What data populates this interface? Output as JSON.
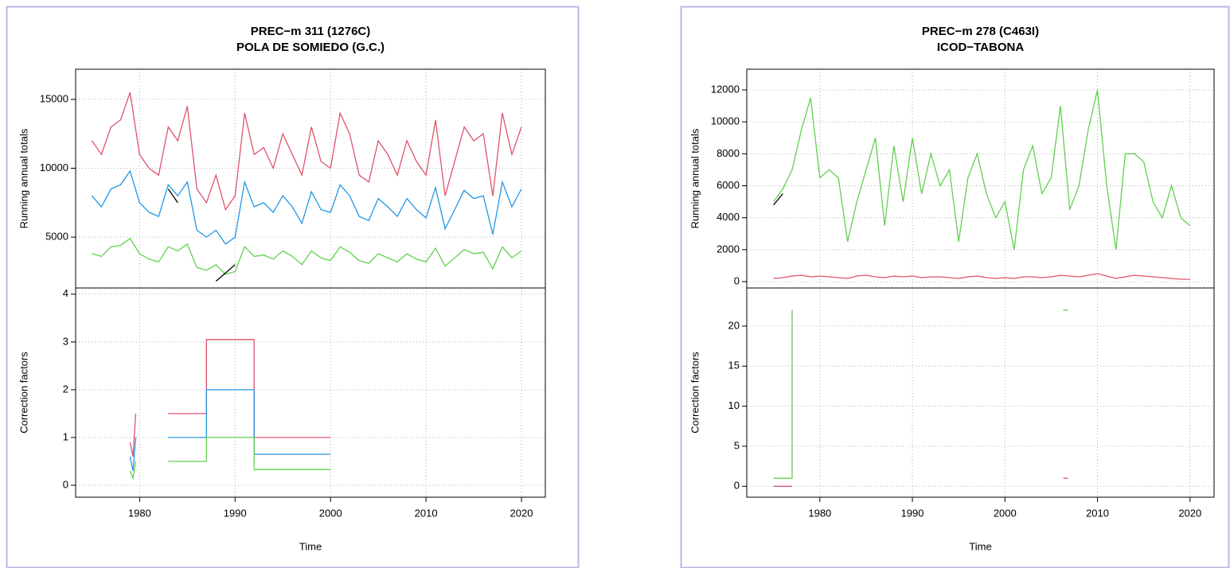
{
  "chart_data": [
    {
      "type": "line",
      "title": "PREC−m   311 (1276C)",
      "subtitle": "POLA DE SOMIEDO (G.C.)",
      "xlabel": "Time",
      "xlim": [
        1973.3,
        2022.5
      ],
      "xticks": [
        1980,
        1990,
        2000,
        2010,
        2020
      ],
      "grid": true,
      "panels": [
        {
          "ylabel": "Running annual totals",
          "ylim": [
            1310,
            17190
          ],
          "yticks": [
            5000,
            10000,
            15000
          ],
          "x": [
            1975,
            1976,
            1977,
            1978,
            1979,
            1980,
            1981,
            1982,
            1983,
            1984,
            1985,
            1986,
            1987,
            1988,
            1989,
            1990,
            1991,
            1992,
            1993,
            1994,
            1995,
            1996,
            1997,
            1998,
            1999,
            2000,
            2001,
            2002,
            2003,
            2004,
            2005,
            2006,
            2007,
            2008,
            2009,
            2010,
            2011,
            2012,
            2013,
            2014,
            2015,
            2016,
            2017,
            2018,
            2019,
            2020
          ],
          "series": [
            {
              "color": "#DF536B",
              "values": [
                12000,
                11000,
                13000,
                13500,
                15500,
                11000,
                10000,
                9500,
                13000,
                12000,
                14500,
                8500,
                7500,
                9500,
                7000,
                8000,
                14000,
                11000,
                11500,
                10000,
                12500,
                11000,
                9500,
                13000,
                10500,
                10000,
                14000,
                12500,
                9500,
                9000,
                12000,
                11000,
                9500,
                12000,
                10500,
                9500,
                13500,
                8000,
                10500,
                13000,
                12000,
                12500,
                8000,
                14000,
                11000,
                13000
              ]
            },
            {
              "color": "#2297E6",
              "values": [
                8000,
                7200,
                8500,
                8800,
                9800,
                7500,
                6800,
                6500,
                8800,
                8000,
                9000,
                5500,
                5000,
                5500,
                4500,
                5000,
                9000,
                7200,
                7500,
                6800,
                8000,
                7200,
                6000,
                8300,
                7000,
                6800,
                8800,
                8000,
                6500,
                6200,
                7800,
                7200,
                6500,
                7800,
                7000,
                6400,
                8600,
                5600,
                7000,
                8400,
                7800,
                8000,
                5200,
                9000,
                7200,
                8500
              ]
            },
            {
              "color": "#61D04F",
              "values": [
                3800,
                3600,
                4300,
                4400,
                4900,
                3800,
                3400,
                3200,
                4300,
                4000,
                4500,
                2800,
                2600,
                3000,
                2300,
                2500,
                4300,
                3600,
                3700,
                3400,
                4000,
                3600,
                3000,
                4000,
                3500,
                3300,
                4300,
                3900,
                3300,
                3100,
                3800,
                3500,
                3200,
                3800,
                3400,
                3200,
                4200,
                2900,
                3500,
                4100,
                3800,
                3900,
                2700,
                4300,
                3500,
                4000
              ]
            },
            {
              "color": "#000000",
              "values": [
                null,
                null,
                null,
                null,
                null,
                null,
                null,
                null,
                8500,
                7500,
                null,
                null,
                null,
                1800,
                2400,
                3000,
                null,
                null,
                null,
                null,
                null,
                null,
                null,
                null,
                null,
                null,
                null,
                null,
                null,
                null,
                null,
                null,
                null,
                null,
                null,
                null,
                null,
                null,
                null,
                null,
                null,
                null,
                null,
                null,
                null,
                null
              ]
            }
          ]
        },
        {
          "ylabel": "Correction factors",
          "ylim": [
            -0.25,
            4.13
          ],
          "yticks": [
            0,
            1,
            2,
            3,
            4
          ],
          "x": [
            1979,
            1979.3,
            1979.6,
            1981,
            1983,
            1987,
            1987,
            1992,
            1992,
            2000
          ],
          "series": [
            {
              "color": "#DF536B",
              "values": [
                0.9,
                0.6,
                1.5,
                null,
                1.5,
                1.5,
                3.05,
                3.05,
                1.0,
                1.0
              ]
            },
            {
              "color": "#2297E6",
              "values": [
                0.6,
                0.3,
                1.0,
                null,
                1.0,
                1.0,
                2.0,
                2.0,
                0.65,
                0.65
              ]
            },
            {
              "color": "#61D04F",
              "values": [
                0.3,
                0.15,
                0.5,
                null,
                0.5,
                0.5,
                1.0,
                1.0,
                0.33,
                0.33
              ]
            }
          ]
        }
      ]
    },
    {
      "type": "line",
      "title": "PREC−m   278 (C463I)",
      "subtitle": "ICOD−TABONA",
      "xlabel": "Time",
      "xlim": [
        1972.1,
        2022.6
      ],
      "xticks": [
        1980,
        1990,
        2000,
        2010,
        2020
      ],
      "grid": true,
      "panels": [
        {
          "ylabel": "Running annual totals",
          "ylim": [
            -398,
            13295
          ],
          "yticks": [
            0,
            2000,
            4000,
            6000,
            8000,
            10000,
            12000
          ],
          "x": [
            1975,
            1976,
            1977,
            1978,
            1979,
            1980,
            1981,
            1982,
            1983,
            1984,
            1985,
            1986,
            1987,
            1988,
            1989,
            1990,
            1991,
            1992,
            1993,
            1994,
            1995,
            1996,
            1997,
            1998,
            1999,
            2000,
            2001,
            2002,
            2003,
            2004,
            2005,
            2006,
            2007,
            2008,
            2009,
            2010,
            2011,
            2012,
            2013,
            2014,
            2015,
            2016,
            2017,
            2018,
            2019,
            2020
          ],
          "series": [
            {
              "color": "#61D04F",
              "values": [
                5000,
                5800,
                7000,
                9500,
                11500,
                6500,
                7000,
                6500,
                2500,
                5000,
                7000,
                9000,
                3500,
                8500,
                5000,
                9000,
                5500,
                8000,
                6000,
                7000,
                2500,
                6500,
                8000,
                5500,
                4000,
                5000,
                2000,
                7000,
                8500,
                5500,
                6500,
                11000,
                4500,
                6000,
                9500,
                12000,
                6000,
                2000,
                8000,
                8000,
                7500,
                5000,
                4000,
                6000,
                4000,
                3500
              ]
            },
            {
              "color": "#DF536B",
              "values": [
                200,
                250,
                350,
                400,
                300,
                350,
                300,
                250,
                200,
                350,
                400,
                300,
                250,
                350,
                300,
                350,
                250,
                300,
                300,
                250,
                200,
                300,
                350,
                250,
                200,
                250,
                200,
                300,
                300,
                250,
                300,
                400,
                350,
                300,
                400,
                500,
                350,
                200,
                300,
                400,
                350,
                300,
                250,
                200,
                150,
                150
              ]
            },
            {
              "color": "#000000",
              "values": [
                4800,
                5500,
                null,
                null,
                null,
                null,
                null,
                null,
                null,
                null,
                null,
                null,
                null,
                null,
                null,
                null,
                null,
                null,
                null,
                null,
                null,
                null,
                null,
                null,
                null,
                null,
                null,
                null,
                null,
                null,
                null,
                null,
                null,
                null,
                null,
                null,
                null,
                null,
                null,
                null,
                null,
                null,
                null,
                null,
                null,
                null
              ]
            }
          ]
        },
        {
          "ylabel": "Correction factors",
          "ylim": [
            -1.36,
            24.76
          ],
          "yticks": [
            0,
            5,
            10,
            15,
            20
          ],
          "x": [
            1975,
            1977,
            1977,
            1990,
            2006.3,
            2006.8
          ],
          "series": [
            {
              "color": "#61D04F",
              "values": [
                1,
                1,
                22,
                null,
                22,
                22
              ]
            },
            {
              "color": "#DF536B",
              "values": [
                0,
                0,
                null,
                null,
                1,
                1
              ]
            }
          ]
        }
      ]
    }
  ]
}
